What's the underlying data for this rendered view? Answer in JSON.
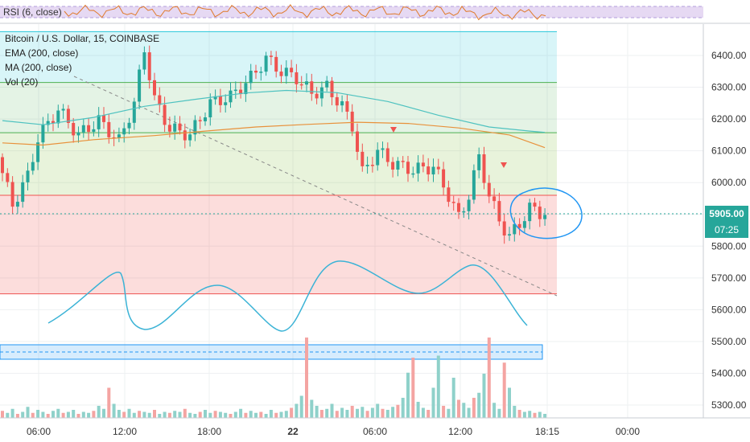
{
  "chart_data": {
    "type": "candlestick",
    "title": "Bitcoin / U.S. Dollar, 15, COINBASE",
    "indicators": [
      "EMA (200, close)",
      "MA (200, close)",
      "Vol (20)"
    ],
    "rsi_label": "RSI (6, close)",
    "y_ticks": [
      "6400.00",
      "6300.00",
      "6200.00",
      "6100.00",
      "6000.00",
      "5900.00",
      "5800.00",
      "5700.00",
      "5600.00",
      "5500.00",
      "5400.00",
      "5300.00"
    ],
    "x_ticks": [
      "06:00",
      "12:00",
      "18:00",
      "22",
      "06:00",
      "12:00",
      "18:15",
      "00:00"
    ],
    "ylim": [
      5270,
      6470
    ],
    "last_price": "5905.00",
    "countdown": "07:25",
    "fib_levels": [
      6475,
      6315,
      6157,
      5960,
      5650
    ],
    "ema": [
      [
        0,
        6125
      ],
      [
        8,
        6118
      ],
      [
        18,
        6135
      ],
      [
        30,
        6148
      ],
      [
        40,
        6162
      ],
      [
        50,
        6175
      ],
      [
        60,
        6183
      ],
      [
        70,
        6190
      ],
      [
        80,
        6186
      ],
      [
        90,
        6172
      ],
      [
        100,
        6150
      ],
      [
        107,
        6110
      ]
    ],
    "ma": [
      [
        0,
        6195
      ],
      [
        8,
        6182
      ],
      [
        18,
        6205
      ],
      [
        28,
        6240
      ],
      [
        38,
        6262
      ],
      [
        48,
        6282
      ],
      [
        56,
        6290
      ],
      [
        66,
        6283
      ],
      [
        76,
        6255
      ],
      [
        86,
        6212
      ],
      [
        96,
        6175
      ],
      [
        104,
        6162
      ],
      [
        107,
        6158
      ]
    ],
    "price_path": [
      [
        0,
        6080
      ],
      [
        3,
        5930
      ],
      [
        6,
        6020
      ],
      [
        8,
        6140
      ],
      [
        12,
        6230
      ],
      [
        16,
        6150
      ],
      [
        20,
        6195
      ],
      [
        24,
        6130
      ],
      [
        27,
        6250
      ],
      [
        29,
        6420
      ],
      [
        31,
        6260
      ],
      [
        34,
        6170
      ],
      [
        38,
        6150
      ],
      [
        42,
        6250
      ],
      [
        46,
        6270
      ],
      [
        50,
        6330
      ],
      [
        53,
        6390
      ],
      [
        56,
        6350
      ],
      [
        59,
        6330
      ],
      [
        62,
        6280
      ],
      [
        65,
        6300
      ],
      [
        68,
        6240
      ],
      [
        70,
        6180
      ],
      [
        72,
        6030
      ],
      [
        75,
        6100
      ],
      [
        78,
        6060
      ],
      [
        82,
        6040
      ],
      [
        86,
        6050
      ],
      [
        89,
        5960
      ],
      [
        91,
        5890
      ],
      [
        93,
        5960
      ],
      [
        95,
        6080
      ],
      [
        97,
        5960
      ],
      [
        99,
        5880
      ],
      [
        101,
        5830
      ],
      [
        103,
        5870
      ],
      [
        105,
        5920
      ],
      [
        107,
        5905
      ]
    ],
    "volume": [
      7,
      5,
      9,
      4,
      6,
      11,
      5,
      8,
      6,
      4,
      7,
      9,
      5,
      6,
      8,
      4,
      6,
      5,
      7,
      12,
      9,
      30,
      14,
      8,
      6,
      9,
      5,
      7,
      6,
      5,
      8,
      4,
      6,
      5,
      7,
      6,
      9,
      5,
      4,
      6,
      8,
      5,
      7,
      6,
      5,
      4,
      6,
      9,
      5,
      7,
      5,
      6,
      4,
      8,
      5,
      6,
      7,
      10,
      14,
      22,
      80,
      18,
      12,
      8,
      9,
      14,
      7,
      10,
      8,
      12,
      9,
      11,
      7,
      10,
      14,
      9,
      8,
      11,
      13,
      20,
      45,
      60,
      16,
      10,
      8,
      30,
      62,
      12,
      9,
      40,
      18,
      15,
      10,
      20,
      25,
      44,
      80,
      15,
      9,
      55,
      30,
      12,
      8,
      6,
      7,
      5,
      6,
      4
    ]
  }
}
